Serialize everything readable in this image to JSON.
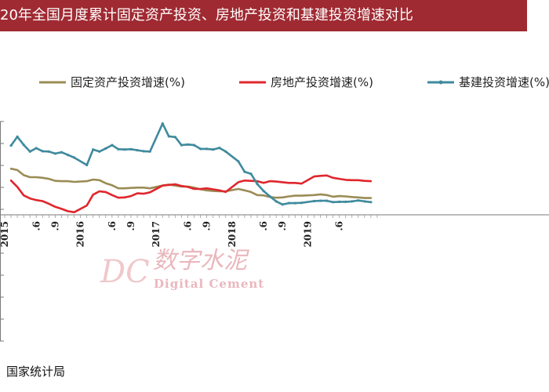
{
  "title": "20年全国月度累计固定资产投资、房地产投资和基建投资增速对比",
  "source": "国家统计局",
  "watermark": {
    "logo": "DC",
    "cn": "数字水泥",
    "en": "Digital Cement"
  },
  "chart_data": {
    "type": "line",
    "title": "20年全国月度累计固定资产投资、房地产投资和基建投资增速对比",
    "legend_position": "top",
    "xlabel": "",
    "ylabel": "",
    "x_ticks": [
      "2015",
      ".6",
      ".9",
      "2016",
      ".6",
      ".9",
      "2017",
      ".6",
      ".9",
      "2018",
      ".6",
      ".9",
      "2019",
      ".6"
    ],
    "x": [
      "2015.02",
      "2015.03",
      "2015.04",
      "2015.05",
      "2015.06",
      "2015.07",
      "2015.08",
      "2015.09",
      "2015.10",
      "2015.11",
      "2015.12",
      "2016.02",
      "2016.03",
      "2016.04",
      "2016.05",
      "2016.06",
      "2016.07",
      "2016.08",
      "2016.09",
      "2016.10",
      "2016.11",
      "2016.12",
      "2017.02",
      "2017.03",
      "2017.04",
      "2017.05",
      "2017.06",
      "2017.07",
      "2017.08",
      "2017.09",
      "2017.10",
      "2017.11",
      "2017.12",
      "2018.02",
      "2018.03",
      "2018.04",
      "2018.05",
      "2018.06",
      "2018.07",
      "2018.08",
      "2018.09",
      "2018.10",
      "2018.11",
      "2018.12",
      "2019.02",
      "2019.03",
      "2019.04",
      "2019.05",
      "2019.06",
      "2019.07",
      "2019.08",
      "2019.09",
      "2019.10",
      "2019.11"
    ],
    "series": [
      {
        "name": "固定资产投资增速(%)",
        "color": "#9a8c55",
        "values": [
          13.9,
          13.5,
          12.0,
          11.4,
          11.4,
          11.2,
          10.9,
          10.3,
          10.2,
          10.2,
          10.0,
          10.2,
          10.7,
          10.5,
          9.6,
          9.0,
          8.1,
          8.1,
          8.2,
          8.3,
          8.3,
          8.1,
          8.9,
          9.2,
          8.9,
          8.6,
          8.6,
          8.3,
          7.8,
          7.5,
          7.3,
          7.2,
          7.2,
          7.9,
          7.5,
          7.0,
          6.1,
          6.0,
          5.5,
          5.3,
          5.4,
          5.7,
          5.9,
          5.9,
          6.1,
          6.3,
          6.1,
          5.6,
          5.8,
          5.7,
          5.5,
          5.4,
          5.2,
          5.2
        ]
      },
      {
        "name": "房地产投资增速(%)",
        "color": "#e0262c",
        "values": [
          10.4,
          8.5,
          6.0,
          5.1,
          4.6,
          4.3,
          3.5,
          2.6,
          2.0,
          1.3,
          1.0,
          3.0,
          6.2,
          7.2,
          7.0,
          6.1,
          5.3,
          5.4,
          5.8,
          6.6,
          6.5,
          6.9,
          8.9,
          9.1,
          9.3,
          8.8,
          8.5,
          7.9,
          7.9,
          8.1,
          7.8,
          7.5,
          7.0,
          9.9,
          10.4,
          10.3,
          10.2,
          9.7,
          10.2,
          10.1,
          9.9,
          9.7,
          9.7,
          9.5,
          11.6,
          11.8,
          11.9,
          11.2,
          10.9,
          10.6,
          10.5,
          10.5,
          10.3,
          10.2
        ]
      },
      {
        "name": "基建投资增速(%)",
        "color": "#3f8a9d",
        "values": [
          20.8,
          23.4,
          21.0,
          19.0,
          20.0,
          19.1,
          19.0,
          18.4,
          18.8,
          18.0,
          17.2,
          15.0,
          19.6,
          19.0,
          19.9,
          20.9,
          19.7,
          19.6,
          19.7,
          19.4,
          19.1,
          19.0,
          27.3,
          23.5,
          23.3,
          20.9,
          21.1,
          20.9,
          19.8,
          19.8,
          19.6,
          20.1,
          19.0,
          16.1,
          13.0,
          12.4,
          9.4,
          7.3,
          5.7,
          4.2,
          3.3,
          3.7,
          3.7,
          3.8,
          4.3,
          4.4,
          4.4,
          4.0,
          4.1,
          4.1,
          4.2,
          4.5,
          4.2,
          4.0
        ]
      }
    ]
  }
}
